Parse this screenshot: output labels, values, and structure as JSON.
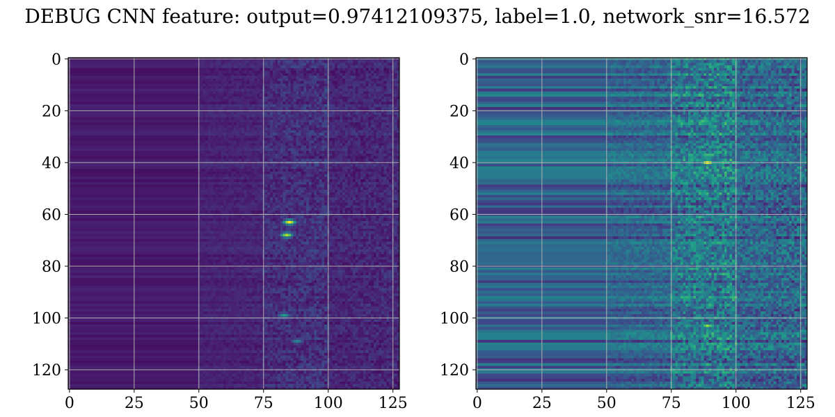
{
  "figure": {
    "suptitle": "DEBUG CNN feature: output=0.97412109375, label=1.0, network_snr=16.572"
  },
  "chart_data": [
    {
      "type": "heatmap",
      "colormap": "viridis",
      "image_size": [
        128,
        128
      ],
      "xlim": [
        -0.5,
        127.5
      ],
      "ylim": [
        127.5,
        -0.5
      ],
      "xticks": [
        0,
        25,
        50,
        75,
        100,
        125
      ],
      "yticks": [
        0,
        20,
        40,
        60,
        80,
        100,
        120
      ],
      "grid": true,
      "notes": {
        "low_region_cols": [
          0,
          50
        ],
        "texture_cols": [
          50,
          128
        ],
        "bright_band_cols": [
          75,
          100
        ],
        "peaks": [
          {
            "row": 63,
            "col": 85,
            "value": 1.0
          },
          {
            "row": 68,
            "col": 84,
            "value": 0.9
          },
          {
            "row": 99,
            "col": 83,
            "value": 0.55
          },
          {
            "row": 109,
            "col": 88,
            "value": 0.45
          }
        ]
      }
    },
    {
      "type": "heatmap",
      "colormap": "viridis",
      "image_size": [
        128,
        128
      ],
      "xlim": [
        -0.5,
        127.5
      ],
      "ylim": [
        127.5,
        -0.5
      ],
      "xticks": [
        0,
        25,
        50,
        75,
        100,
        125
      ],
      "yticks": [
        0,
        20,
        40,
        60,
        80,
        100,
        120
      ],
      "grid": true,
      "notes": {
        "low_region_cols": [
          0,
          50
        ],
        "texture_cols": [
          50,
          128
        ],
        "bright_band_cols": [
          75,
          100
        ],
        "peaks": [
          {
            "row": 40,
            "col": 89,
            "value": 1.0
          },
          {
            "row": 103,
            "col": 89,
            "value": 0.85
          },
          {
            "row": 24,
            "col": 87,
            "value": 0.7
          }
        ]
      }
    }
  ]
}
